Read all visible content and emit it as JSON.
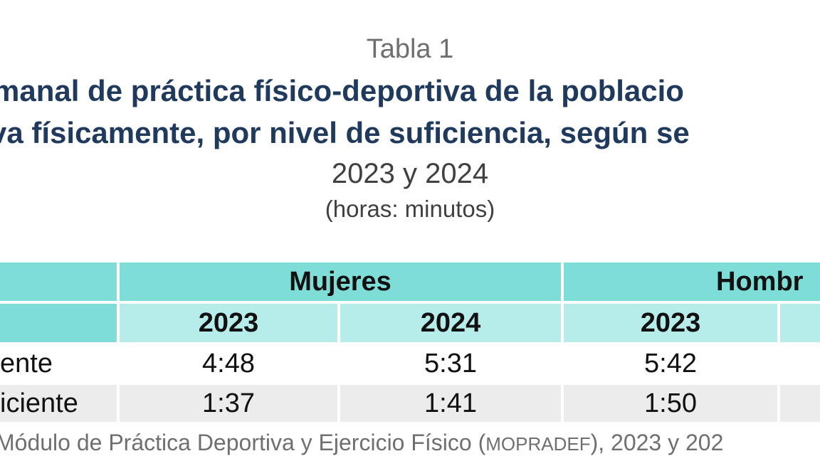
{
  "table_label": "Tabla 1",
  "title_line1": "manal de práctica físico-deportiva de la poblacio",
  "title_line2": "va físicamente, por nivel de suficiencia, según se",
  "years": "2023 y 2024",
  "units": "(horas: minutos)",
  "table": {
    "groups": [
      "Mujeres",
      "Hombr"
    ],
    "years": [
      "2023",
      "2024",
      "2023"
    ],
    "rows": [
      {
        "label": "ente",
        "values": [
          "4:48",
          "5:31",
          "5:42"
        ]
      },
      {
        "label": "iciente",
        "values": [
          "1:37",
          "1:41",
          "1:50"
        ]
      }
    ]
  },
  "source": {
    "prefix": "Módulo de Práctica Deportiva y Ejercicio Físico (",
    "acronym": "MOPRADEF",
    "suffix": "), 2023 y 202"
  }
}
